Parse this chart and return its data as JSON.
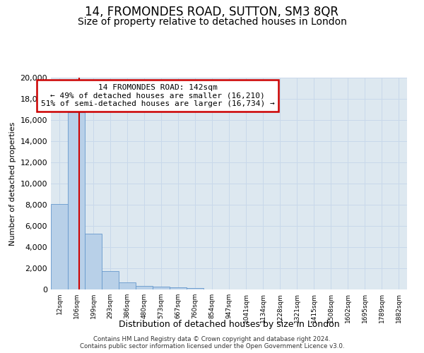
{
  "title": "14, FROMONDES ROAD, SUTTON, SM3 8QR",
  "subtitle": "Size of property relative to detached houses in London",
  "xlabel": "Distribution of detached houses by size in London",
  "ylabel": "Number of detached properties",
  "categories": [
    "12sqm",
    "106sqm",
    "199sqm",
    "293sqm",
    "386sqm",
    "480sqm",
    "573sqm",
    "667sqm",
    "760sqm",
    "854sqm",
    "947sqm",
    "1041sqm",
    "1134sqm",
    "1228sqm",
    "1321sqm",
    "1415sqm",
    "1508sqm",
    "1602sqm",
    "1695sqm",
    "1789sqm",
    "1882sqm"
  ],
  "bar_heights": [
    8100,
    16700,
    5300,
    1750,
    700,
    350,
    270,
    200,
    150,
    0,
    0,
    0,
    0,
    0,
    0,
    0,
    0,
    0,
    0,
    0,
    0
  ],
  "bar_color": "#b8d0e8",
  "bar_edge_color": "#6699cc",
  "annotation_line1": "14 FROMONDES ROAD: 142sqm",
  "annotation_line2": "← 49% of detached houses are smaller (16,210)",
  "annotation_line3": "51% of semi-detached houses are larger (16,734) →",
  "annotation_box_color": "#ffffff",
  "annotation_box_edge_color": "#cc0000",
  "ylim": [
    0,
    20000
  ],
  "yticks": [
    0,
    2000,
    4000,
    6000,
    8000,
    10000,
    12000,
    14000,
    16000,
    18000,
    20000
  ],
  "grid_color": "#c8d8ea",
  "bg_color": "#dde8f0",
  "footer_line1": "Contains HM Land Registry data © Crown copyright and database right 2024.",
  "footer_line2": "Contains public sector information licensed under the Open Government Licence v3.0.",
  "red_line_color": "#cc0000",
  "title_fontsize": 12,
  "subtitle_fontsize": 10,
  "red_line_x": 1.18
}
